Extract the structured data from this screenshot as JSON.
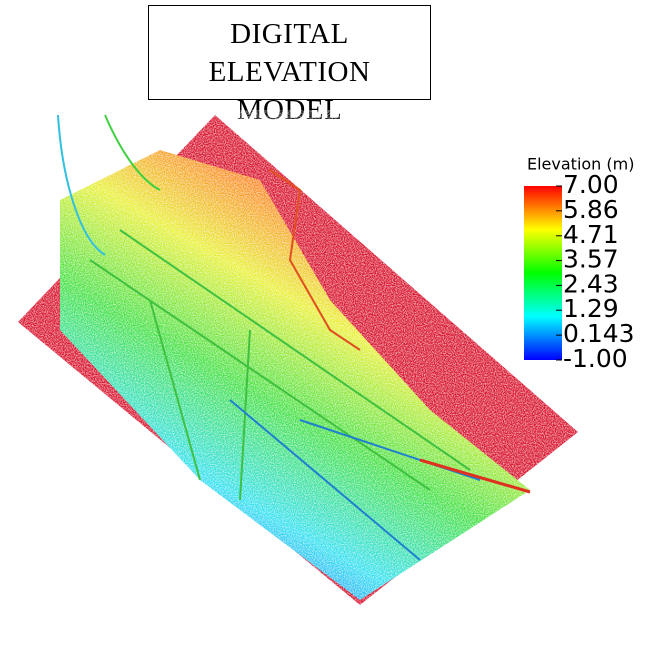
{
  "title": "DIGITAL ELEVATION MODEL",
  "colorbar": {
    "label": "Elevation (m)",
    "colors": [
      "#0000ff",
      "#00ffff",
      "#00ff00",
      "#ffff00",
      "#ff0000"
    ],
    "ticks": [
      {
        "value": 7,
        "label": "7.00"
      },
      5.86,
      4.71,
      3.57,
      2.43,
      1.29,
      0.143,
      {
        "value": -1,
        "label": "-1.00"
      }
    ]
  }
}
